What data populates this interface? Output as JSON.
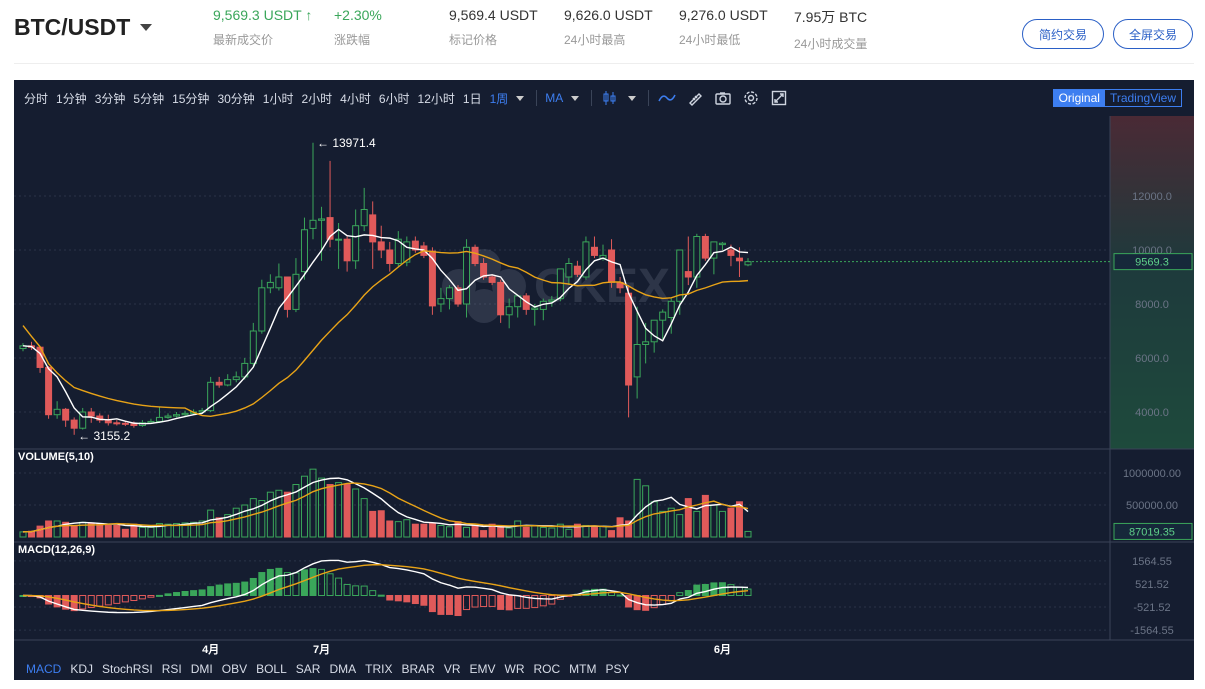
{
  "header": {
    "pair": "BTC/USDT",
    "stats": [
      {
        "value": "9,569.3 USDT ↑",
        "label": "最新成交价",
        "up": true
      },
      {
        "value": "+2.30%",
        "label": "涨跌幅",
        "up": true
      },
      {
        "value": "9,569.4 USDT",
        "label": "标记价格"
      },
      {
        "value": "9,626.0 USDT",
        "label": "24小时最高"
      },
      {
        "value": "9,276.0 USDT",
        "label": "24小时最低"
      },
      {
        "value": "7.95万 BTC",
        "label": "24小时成交量"
      }
    ],
    "buttons": [
      "简约交易",
      "全屏交易"
    ]
  },
  "toolbar": {
    "intervals": [
      "分时",
      "1分钟",
      "3分钟",
      "5分钟",
      "15分钟",
      "30分钟",
      "1小时",
      "2小时",
      "4小时",
      "6小时",
      "12小时",
      "1日",
      "1周"
    ],
    "active_interval": "1周",
    "indicator": "MA",
    "modes": [
      "Original",
      "TradingView"
    ],
    "active_mode": "Original",
    "icons": [
      "candlestick-icon",
      "line-icon",
      "draw-icon",
      "camera-icon",
      "gear-icon",
      "fullscreen-icon"
    ]
  },
  "colors": {
    "up": "#3aa65a",
    "down": "#e05a5a",
    "ma_fast": "#ffffff",
    "ma_slow": "#e8a317",
    "accent": "#3d7ef0"
  },
  "chart_data": {
    "type": "candlestick",
    "watermark": "OKEX",
    "price_axis": {
      "ticks": [
        "12000.0",
        "10000.0",
        "8000.0",
        "6000.0",
        "4000.0"
      ],
      "range": [
        2900,
        14600
      ]
    },
    "last_price": "9569.3",
    "high_label": "13971.4",
    "low_label": "3155.2",
    "x_labels": [
      {
        "label": "4月",
        "index": 22
      },
      {
        "label": "7月",
        "index": 35
      },
      {
        "label": "6月",
        "index": 82
      }
    ],
    "ohlc": [
      [
        6350,
        6550,
        6250,
        6450
      ],
      [
        6450,
        6600,
        6300,
        6400
      ],
      [
        6400,
        6450,
        5450,
        5650
      ],
      [
        5650,
        5700,
        3750,
        3900
      ],
      [
        3900,
        4400,
        3750,
        4100
      ],
      [
        4100,
        4150,
        3450,
        3700
      ],
      [
        3700,
        3800,
        3155.2,
        3400
      ],
      [
        3400,
        4150,
        3350,
        4000
      ],
      [
        4000,
        4150,
        3600,
        3850
      ],
      [
        3850,
        3950,
        3600,
        3700
      ],
      [
        3700,
        3900,
        3500,
        3600
      ],
      [
        3600,
        3700,
        3500,
        3580
      ],
      [
        3580,
        3650,
        3480,
        3560
      ],
      [
        3560,
        3650,
        3420,
        3500
      ],
      [
        3500,
        3700,
        3450,
        3600
      ],
      [
        3600,
        3750,
        3580,
        3650
      ],
      [
        3650,
        4200,
        3600,
        3800
      ],
      [
        3800,
        3950,
        3750,
        3850
      ],
      [
        3850,
        4000,
        3800,
        3900
      ],
      [
        3900,
        4050,
        3850,
        3950
      ],
      [
        3950,
        4100,
        3900,
        4000
      ],
      [
        4000,
        4150,
        3950,
        4050
      ],
      [
        4050,
        5300,
        4000,
        5100
      ],
      [
        5100,
        5300,
        4900,
        5000
      ],
      [
        5000,
        5400,
        4950,
        5200
      ],
      [
        5200,
        5500,
        5100,
        5300
      ],
      [
        5300,
        6000,
        5200,
        5800
      ],
      [
        5800,
        7300,
        5700,
        7000
      ],
      [
        7000,
        8900,
        6900,
        8600
      ],
      [
        8600,
        9100,
        8400,
        8800
      ],
      [
        8600,
        9500,
        8500,
        9000
      ],
      [
        9000,
        9000,
        7500,
        7800
      ],
      [
        7800,
        9700,
        7700,
        9100
      ],
      [
        9200,
        11200,
        8900,
        10750
      ],
      [
        10800,
        13971.4,
        10400,
        11100
      ],
      [
        11100,
        11600,
        9600,
        11150
      ],
      [
        11200,
        13300,
        10100,
        10400
      ],
      [
        10400,
        11000,
        9300,
        10400
      ],
      [
        10400,
        10500,
        9200,
        9600
      ],
      [
        9600,
        11500,
        9300,
        10900
      ],
      [
        10900,
        12300,
        10700,
        11500
      ],
      [
        11300,
        11800,
        9300,
        10300
      ],
      [
        10300,
        10900,
        9700,
        10000
      ],
      [
        10000,
        10300,
        9200,
        9500
      ],
      [
        9500,
        10700,
        9400,
        10400
      ],
      [
        9550,
        10500,
        9400,
        10300
      ],
      [
        10330,
        10500,
        9900,
        10000
      ],
      [
        10150,
        10300,
        9700,
        9800
      ],
      [
        9960,
        10100,
        7600,
        7930
      ],
      [
        8000,
        8600,
        7700,
        8200
      ],
      [
        8200,
        8700,
        7800,
        8600
      ],
      [
        8600,
        8700,
        7900,
        8000
      ],
      [
        8000,
        10400,
        7500,
        10100
      ],
      [
        10100,
        10200,
        9400,
        9500
      ],
      [
        9500,
        9700,
        8900,
        9000
      ],
      [
        9000,
        9100,
        8700,
        8800
      ],
      [
        8800,
        8900,
        7300,
        7600
      ],
      [
        7600,
        8200,
        7100,
        7900
      ],
      [
        7900,
        8300,
        7500,
        8300
      ],
      [
        8300,
        8400,
        7600,
        7800
      ],
      [
        7800,
        8000,
        7200,
        7850
      ],
      [
        7800,
        8200,
        7400,
        8100
      ],
      [
        8100,
        8300,
        7900,
        8150
      ],
      [
        8200,
        9300,
        8100,
        9300
      ],
      [
        9000,
        9700,
        8700,
        9500
      ],
      [
        9400,
        9600,
        9000,
        9100
      ],
      [
        9000,
        10500,
        8900,
        10300
      ],
      [
        10100,
        10500,
        9700,
        9800
      ],
      [
        9700,
        10200,
        9600,
        9800
      ],
      [
        10000,
        10400,
        8600,
        8800
      ],
      [
        8800,
        9000,
        8400,
        8600
      ],
      [
        8400,
        8700,
        3800,
        5000
      ],
      [
        5300,
        7900,
        4500,
        6500
      ],
      [
        6500,
        7300,
        5800,
        6600
      ],
      [
        6600,
        7400,
        6200,
        7400
      ],
      [
        7400,
        7800,
        6700,
        7700
      ],
      [
        7500,
        8200,
        6900,
        8100
      ],
      [
        8100,
        10000,
        7600,
        10000
      ],
      [
        9200,
        10500,
        8700,
        9000
      ],
      [
        9000,
        10600,
        8600,
        10500
      ],
      [
        10500,
        10600,
        9600,
        9700
      ],
      [
        9700,
        10300,
        9100,
        10300
      ],
      [
        10200,
        10300,
        10000,
        10250
      ],
      [
        10000,
        10200,
        9400,
        9800
      ],
      [
        9700,
        10100,
        9000,
        9600
      ],
      [
        9450,
        9700,
        9400,
        9569.3
      ]
    ],
    "volume": {
      "label": "VOLUME(5,10)",
      "ticks": [
        "1000000.00",
        "500000.00"
      ],
      "last": "87019.35",
      "values": [
        80000,
        90000,
        170000,
        250000,
        250000,
        230000,
        180000,
        230000,
        220000,
        200000,
        180000,
        180000,
        120000,
        200000,
        150000,
        150000,
        210000,
        200000,
        210000,
        220000,
        230000,
        250000,
        420000,
        300000,
        350000,
        450000,
        500000,
        600000,
        570000,
        700000,
        730000,
        700000,
        820000,
        950000,
        1060000,
        920000,
        820000,
        850000,
        820000,
        750000,
        600000,
        400000,
        410000,
        250000,
        240000,
        270000,
        200000,
        200000,
        210000,
        180000,
        160000,
        240000,
        150000,
        180000,
        100000,
        200000,
        170000,
        140000,
        250000,
        150000,
        180000,
        150000,
        140000,
        200000,
        120000,
        200000,
        180000,
        160000,
        170000,
        100000,
        300000,
        250000,
        900000,
        800000,
        550000,
        400000,
        450000,
        350000,
        600000,
        400000,
        650000,
        500000,
        400000,
        450000,
        550000,
        87019.35
      ]
    },
    "macd": {
      "label": "MACD(12,26,9)",
      "ticks": [
        "1564.55",
        "521.52",
        "-521.52",
        "-1564.55"
      ]
    }
  },
  "indicator_tabs": [
    "MACD",
    "KDJ",
    "StochRSI",
    "RSI",
    "DMI",
    "OBV",
    "BOLL",
    "SAR",
    "DMA",
    "TRIX",
    "BRAR",
    "VR",
    "EMV",
    "WR",
    "ROC",
    "MTM",
    "PSY"
  ],
  "active_indicator": "MACD"
}
